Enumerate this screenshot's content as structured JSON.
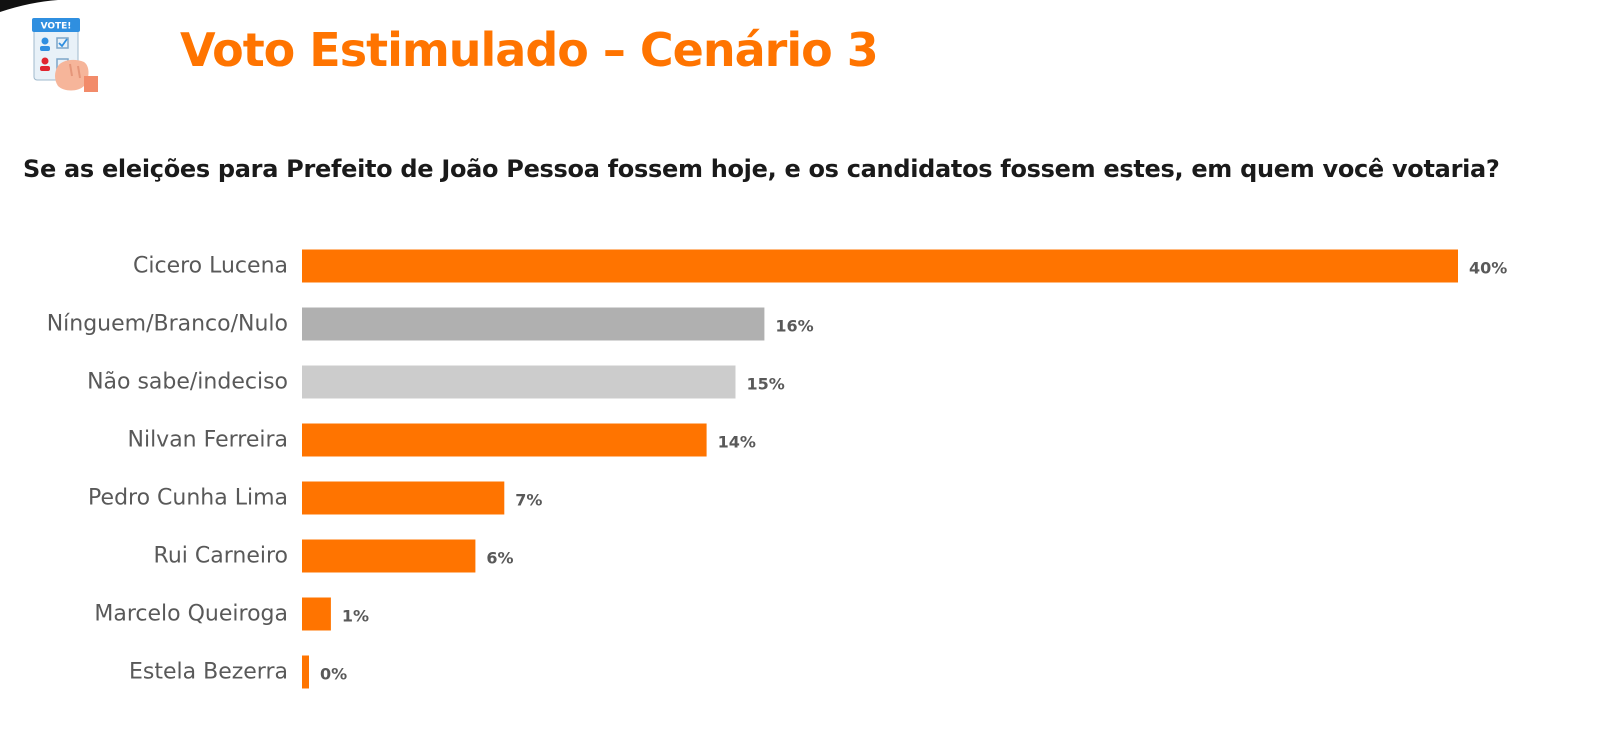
{
  "header": {
    "title": "Voto Estimulado – Cenário 3",
    "logo_text": "VOTE!"
  },
  "question": "Se as eleições para Prefeito de João Pessoa fossem hoje, e os candidatos fossem estes, em quem você votaria?",
  "chart_data": {
    "type": "bar",
    "orientation": "horizontal",
    "title": "",
    "xlabel": "",
    "ylabel": "",
    "xlim": [
      0,
      40
    ],
    "grid": false,
    "legend": "none",
    "categories": [
      "Cicero Lucena",
      "Nínguem/Branco/Nulo",
      "Não sabe/indeciso",
      "Nilvan Ferreira",
      "Pedro Cunha Lima",
      "Rui Carneiro",
      "Marcelo Queiroga",
      "Estela Bezerra"
    ],
    "values": [
      40,
      16,
      15,
      14,
      7,
      6,
      1,
      0
    ],
    "value_labels": [
      "40%",
      "16%",
      "15%",
      "14%",
      "7%",
      "6%",
      "1%",
      "0%"
    ],
    "bar_colors": [
      "#ff7400",
      "#b0b0b0",
      "#cccccc",
      "#ff7400",
      "#ff7400",
      "#ff7400",
      "#ff7400",
      "#ff7400"
    ]
  },
  "colors": {
    "accent": "#ff7400",
    "text_dark": "#1a1a1a",
    "label_gray": "#595959"
  }
}
